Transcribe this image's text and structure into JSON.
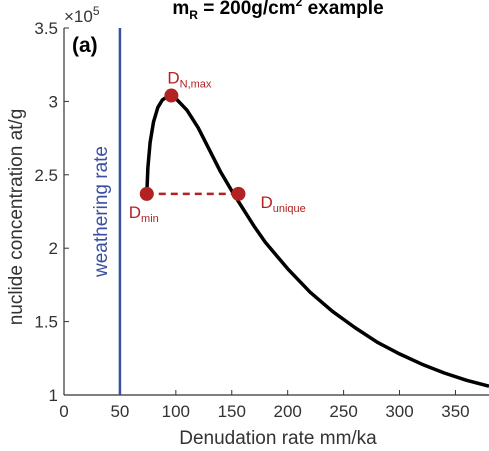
{
  "chart_data": {
    "type": "line",
    "title": "m",
    "title_sub": "R",
    "title_rest": " = 200g/cm",
    "title_sup": "2",
    "title_end": " example",
    "panel_label": "(a)",
    "xlabel": "Denudation rate mm/ka",
    "ylabel": "nuclide concentration at/g",
    "y_exponent_label": "×10",
    "y_exponent_power": "5",
    "xlim": [
      0,
      380
    ],
    "ylim": [
      1.0,
      3.5
    ],
    "x_ticks": [
      0,
      50,
      100,
      150,
      200,
      250,
      300,
      350
    ],
    "x_tick_labels": [
      "0",
      "50",
      "100",
      "150",
      "200",
      "250",
      "300",
      "350"
    ],
    "y_ticks": [
      1.0,
      1.5,
      2.0,
      2.5,
      3.0,
      3.5
    ],
    "y_tick_labels": [
      "1",
      "1.5",
      "2",
      "2.5",
      "3",
      "3.5"
    ],
    "grid": false,
    "series": [
      {
        "color": "#000000",
        "x": [
          74,
          75,
          77,
          80,
          84,
          88,
          92,
          95,
          100,
          110,
          120,
          130,
          140,
          150,
          160,
          170,
          180,
          200,
          220,
          240,
          260,
          280,
          300,
          320,
          340,
          360,
          380
        ],
        "y": [
          2.37,
          2.55,
          2.72,
          2.86,
          2.96,
          3.01,
          3.03,
          3.04,
          3.02,
          2.94,
          2.82,
          2.67,
          2.52,
          2.39,
          2.27,
          2.15,
          2.04,
          1.86,
          1.7,
          1.57,
          1.46,
          1.36,
          1.28,
          1.21,
          1.15,
          1.1,
          1.06
        ]
      }
    ],
    "vertical_line": {
      "x": 50,
      "label": "weathering rate",
      "color": "#3a4fa0"
    },
    "points": [
      {
        "name": "D_min",
        "label": "D",
        "sub": "min",
        "x": 74,
        "y": 2.37
      },
      {
        "name": "D_Nmax",
        "label": "D",
        "sub": "N,max",
        "x": 96,
        "y": 3.04
      },
      {
        "name": "D_unique",
        "label": "D",
        "sub": "unique",
        "x": 156,
        "y": 2.37
      }
    ],
    "dashed_segment": {
      "x1": 74,
      "x2": 156,
      "y": 2.37,
      "color": "#b22222"
    },
    "point_color": "#b22222"
  }
}
